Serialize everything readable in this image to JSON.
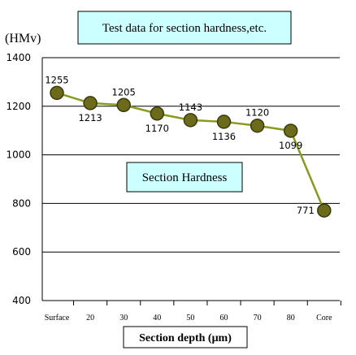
{
  "chart_data": {
    "type": "line",
    "title": "Test data for section hardness,etc.",
    "annotation": "Section Hardness",
    "ylabel": "(HMv)",
    "xlabel": "Section depth (μm)",
    "categories": [
      "Surface",
      "20",
      "30",
      "40",
      "50",
      "60",
      "70",
      "80",
      "Core"
    ],
    "series": [
      {
        "values": [
          1255,
          1213,
          1205,
          1170,
          1143,
          1136,
          1120,
          1099,
          771
        ],
        "labels": [
          "1255",
          "1213",
          "1205",
          "1170",
          "1143",
          "1136",
          "1120",
          "1099",
          "771"
        ]
      }
    ],
    "ylim": [
      400,
      1400
    ],
    "yticks": [
      "400",
      "600",
      "800",
      "1000",
      "1200",
      "1400"
    ],
    "grid": true,
    "colors": {
      "line": "#8a9a1e",
      "marker_fill": "#6b6b1a",
      "marker_stroke": "#3a3a10",
      "title_box_fill": "#ccffff",
      "annotation_box_fill": "#ccffff",
      "gridline": "#000000"
    }
  }
}
